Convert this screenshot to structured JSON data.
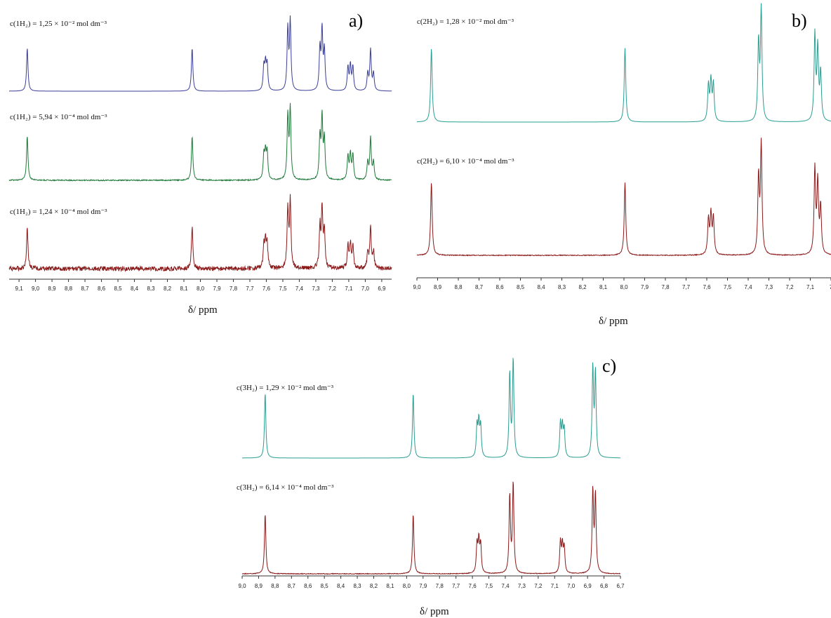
{
  "panels": [
    {
      "letter": "a)",
      "xlabel": "δ/ ppm",
      "xlim": [
        9.16,
        6.84
      ],
      "ticks": [
        "9,1",
        "9,0",
        "8,9",
        "8,8",
        "8,7",
        "8,6",
        "8,5",
        "8,4",
        "8,3",
        "8,2",
        "8,1",
        "8,0",
        "7,9",
        "7,8",
        "7,7",
        "7,6",
        "7,5",
        "7,4",
        "7,3",
        "7,2",
        "7,1",
        "7,0",
        "6,9"
      ],
      "spectra": [
        {
          "conc": "c(1H₂) = 1,25 × 10⁻² mol dm⁻³",
          "color": "#3b3f97"
        },
        {
          "conc": "c(1H₂) = 5,94 × 10⁻⁴ mol dm⁻³",
          "color": "#1f7a3a"
        },
        {
          "conc": "c(1H₂) = 1,24 × 10⁻⁴ mol dm⁻³",
          "color": "#8b1a1a"
        }
      ]
    },
    {
      "letter": "b)",
      "xlabel": "δ/ ppm",
      "xlim": [
        9.0,
        7.0
      ],
      "ticks": [
        "9,0",
        "8,9",
        "8,8",
        "8,7",
        "8,6",
        "8,5",
        "8,4",
        "8,3",
        "8,2",
        "8,1",
        "8,0",
        "7,9",
        "7,8",
        "7,7",
        "7,6",
        "7,5",
        "7,4",
        "7,3",
        "7,2",
        "7,1",
        "7"
      ],
      "spectra": [
        {
          "conc": "c(2H₂) = 1,28 × 10⁻² mol dm⁻³",
          "color": "#2a9d92"
        },
        {
          "conc": "c(2H₂) = 6,10 × 10⁻⁴ mol dm⁻³",
          "color": "#8b1a1a"
        }
      ]
    },
    {
      "letter": "c)",
      "xlabel": "δ/ ppm",
      "xlim": [
        9.0,
        6.7
      ],
      "ticks": [
        "9,0",
        "8,9",
        "8,8",
        "8,7",
        "8,6",
        "8,5",
        "8,4",
        "8,3",
        "8,2",
        "8,1",
        "8,0",
        "7,9",
        "7,8",
        "7,7",
        "7,6",
        "7,5",
        "7,4",
        "7,3",
        "7,2",
        "7,1",
        "7,0",
        "6,9",
        "6,8",
        "6,7"
      ],
      "spectra": [
        {
          "conc": "c(3H₂) = 1,29 × 10⁻² mol dm⁻³",
          "color": "#2a9d92"
        },
        {
          "conc": "c(3H₂) = 6,14 × 10⁻⁴ mol dm⁻³",
          "color": "#8b1a1a"
        }
      ]
    }
  ],
  "chart_data": [
    {
      "type": "line",
      "panel": "a)",
      "xlabel": "δ/ ppm",
      "xlim": [
        9.16,
        6.84
      ],
      "peaks_ppm": [
        {
          "x": 9.05,
          "h": 0.55
        },
        {
          "x": 8.05,
          "h": 0.55
        },
        {
          "x": 7.615,
          "h": 0.3
        },
        {
          "x": 7.605,
          "h": 0.32
        },
        {
          "x": 7.595,
          "h": 0.32
        },
        {
          "x": 7.47,
          "h": 0.78
        },
        {
          "x": 7.455,
          "h": 0.88
        },
        {
          "x": 7.275,
          "h": 0.52
        },
        {
          "x": 7.262,
          "h": 0.75
        },
        {
          "x": 7.248,
          "h": 0.5
        },
        {
          "x": 7.105,
          "h": 0.3
        },
        {
          "x": 7.09,
          "h": 0.32
        },
        {
          "x": 7.075,
          "h": 0.3
        },
        {
          "x": 6.985,
          "h": 0.22
        },
        {
          "x": 6.968,
          "h": 0.52
        },
        {
          "x": 6.95,
          "h": 0.22
        }
      ],
      "series": [
        {
          "name": "c(1H₂) = 1,25 × 10⁻² mol dm⁻³"
        },
        {
          "name": "c(1H₂) = 5,94 × 10⁻⁴ mol dm⁻³"
        },
        {
          "name": "c(1H₂) = 1,24 × 10⁻⁴ mol dm⁻³"
        }
      ]
    },
    {
      "type": "line",
      "panel": "b)",
      "xlabel": "δ/ ppm",
      "xlim": [
        9.0,
        7.0
      ],
      "peaks_ppm": [
        {
          "x": 8.93,
          "h": 0.62
        },
        {
          "x": 7.995,
          "h": 0.62
        },
        {
          "x": 7.592,
          "h": 0.3
        },
        {
          "x": 7.58,
          "h": 0.33
        },
        {
          "x": 7.568,
          "h": 0.31
        },
        {
          "x": 7.35,
          "h": 0.65
        },
        {
          "x": 7.337,
          "h": 0.93
        },
        {
          "x": 7.078,
          "h": 0.72
        },
        {
          "x": 7.064,
          "h": 0.6
        },
        {
          "x": 7.05,
          "h": 0.4
        }
      ],
      "series": [
        {
          "name": "c(2H₂) = 1,28 × 10⁻² mol dm⁻³"
        },
        {
          "name": "c(2H₂) = 6,10 × 10⁻⁴ mol dm⁻³"
        }
      ]
    },
    {
      "type": "line",
      "panel": "c)",
      "xlabel": "δ/ ppm",
      "xlim": [
        9.0,
        6.7
      ],
      "peaks_ppm": [
        {
          "x": 8.86,
          "h": 0.62
        },
        {
          "x": 7.96,
          "h": 0.62
        },
        {
          "x": 7.572,
          "h": 0.3
        },
        {
          "x": 7.561,
          "h": 0.32
        },
        {
          "x": 7.55,
          "h": 0.29
        },
        {
          "x": 7.373,
          "h": 0.8
        },
        {
          "x": 7.352,
          "h": 0.93
        },
        {
          "x": 7.065,
          "h": 0.32
        },
        {
          "x": 7.053,
          "h": 0.28
        },
        {
          "x": 7.042,
          "h": 0.26
        },
        {
          "x": 6.868,
          "h": 0.85
        },
        {
          "x": 6.852,
          "h": 0.8
        }
      ],
      "series": [
        {
          "name": "c(3H₂) = 1,29 × 10⁻² mol dm⁻³"
        },
        {
          "name": "c(3H₂) = 6,14 × 10⁻⁴ mol dm⁻³"
        }
      ]
    }
  ]
}
